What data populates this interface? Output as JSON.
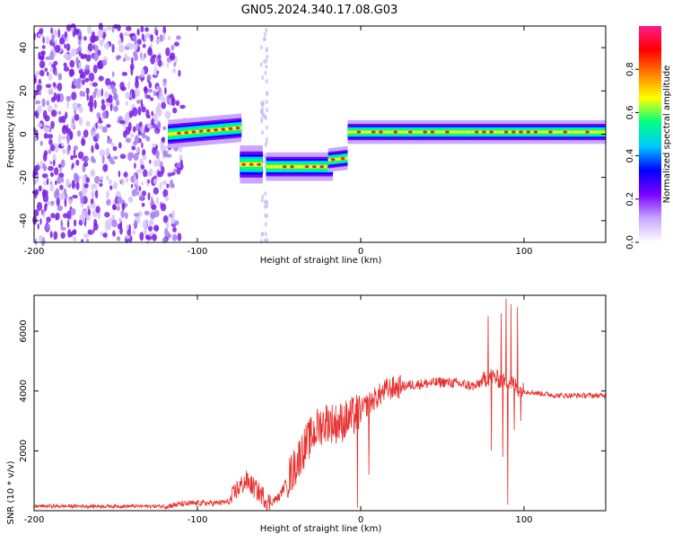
{
  "title": "GN05.2024.340.17.08.G03",
  "colors": {
    "trace": "#e8302e",
    "frame": "#000000",
    "spectrogram_dot": "#7a1ee6",
    "colormap": [
      "#ffffff",
      "#c8a8ff",
      "#7a00ff",
      "#0000ff",
      "#00c8ff",
      "#00ff80",
      "#ffff00",
      "#ff8000",
      "#ff0000",
      "#ff1a8c"
    ]
  },
  "chart_data": [
    {
      "type": "heatmap",
      "name": "spectrogram",
      "title": "GN05.2024.340.17.08.G03",
      "xlabel": "Height of straight line (km)",
      "ylabel": "Frequency (Hz)",
      "xlim": [
        -200,
        150
      ],
      "ylim": [
        -50,
        50
      ],
      "xticks": [
        -200,
        -100,
        0,
        100
      ],
      "yticks": [
        -40,
        -20,
        0,
        20,
        40
      ],
      "colorbar": {
        "label": "Normalized spectral amplitude",
        "range": [
          0.0,
          1.0
        ],
        "ticks": [
          0.0,
          0.2,
          0.4,
          0.6,
          0.8
        ]
      },
      "segments": [
        {
          "x": [
            -118,
            -73
          ],
          "y": [
            0,
            3
          ],
          "width_hz": 6
        },
        {
          "x": [
            -74,
            -60
          ],
          "y": [
            -14,
            -14
          ],
          "width_hz": 8
        },
        {
          "x": [
            -58,
            -17
          ],
          "y": [
            -15,
            -15
          ],
          "width_hz": 6
        },
        {
          "x": [
            -20,
            -8
          ],
          "y": [
            -12,
            -11
          ],
          "width_hz": 5
        },
        {
          "x": [
            -8,
            150
          ],
          "y": [
            1,
            1
          ],
          "width_hz": 5
        }
      ],
      "grid": false
    },
    {
      "type": "line",
      "name": "snr",
      "xlabel": "Height of straight line (km)",
      "ylabel": "SNR (10 * v/v)",
      "xlim": [
        -200,
        150
      ],
      "ylim": [
        0,
        7200
      ],
      "xticks": [
        -200,
        -100,
        0,
        100
      ],
      "yticks": [
        2000,
        4000,
        6000
      ],
      "envelope": {
        "x": [
          -200,
          -120,
          -110,
          -100,
          -90,
          -80,
          -76,
          -70,
          -66,
          -60,
          -56,
          -50,
          -46,
          -40,
          -36,
          -30,
          -26,
          -20,
          -16,
          -10,
          -6,
          0,
          4,
          10,
          16,
          20,
          30,
          40,
          50,
          60,
          70,
          76,
          80,
          84,
          88,
          90,
          92,
          96,
          100,
          106,
          120,
          150
        ],
        "y": [
          150,
          150,
          220,
          250,
          250,
          300,
          700,
          1000,
          800,
          500,
          250,
          450,
          900,
          1500,
          2000,
          2500,
          2800,
          3000,
          2900,
          3000,
          3100,
          3300,
          3550,
          3800,
          4050,
          4100,
          4200,
          4250,
          4300,
          4250,
          4150,
          4400,
          4500,
          4400,
          4300,
          4350,
          4300,
          4100,
          4000,
          3950,
          3850,
          3850
        ]
      },
      "extremes": [
        {
          "x": 78,
          "y": 6500
        },
        {
          "x": 80,
          "y": 2000
        },
        {
          "x": 86,
          "y": 6600
        },
        {
          "x": 87,
          "y": 1800
        },
        {
          "x": 89,
          "y": 7100
        },
        {
          "x": 90,
          "y": 200
        },
        {
          "x": 92,
          "y": 6900
        },
        {
          "x": 94,
          "y": 2700
        },
        {
          "x": 96,
          "y": 6800
        },
        {
          "x": 98,
          "y": 3000
        },
        {
          "x": -2,
          "y": 100
        },
        {
          "x": 5,
          "y": 1200
        }
      ],
      "grid": false
    }
  ]
}
